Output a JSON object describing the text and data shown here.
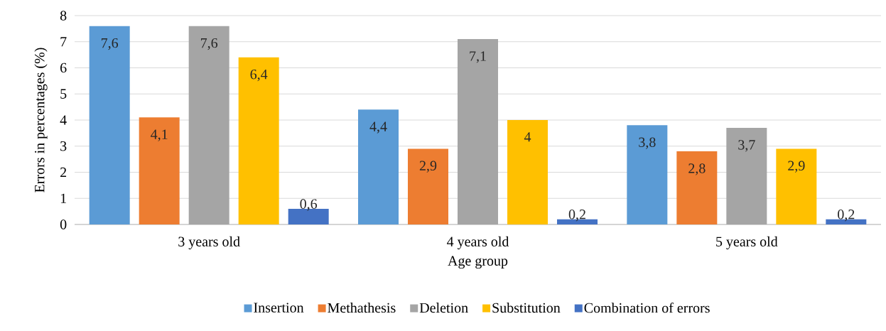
{
  "chart_data": {
    "type": "bar",
    "xlabel": "Age group",
    "ylabel": "Errors in percentages (%)",
    "categories": [
      "3 years old",
      "4 years old",
      "5 years old"
    ],
    "series": [
      {
        "name": "Insertion",
        "color": "#5b9bd5",
        "values": [
          7.6,
          4.4,
          3.8
        ],
        "value_labels": [
          "7,6",
          "4,4",
          "3,8"
        ]
      },
      {
        "name": "Methathesis",
        "color": "#ed7d31",
        "values": [
          4.1,
          2.9,
          2.8
        ],
        "value_labels": [
          "4,1",
          "2,9",
          "2,8"
        ]
      },
      {
        "name": "Deletion",
        "color": "#a5a5a5",
        "values": [
          7.6,
          7.1,
          3.7
        ],
        "value_labels": [
          "7,6",
          "7,1",
          "3,7"
        ]
      },
      {
        "name": "Substitution",
        "color": "#ffc000",
        "values": [
          6.4,
          4.0,
          2.9
        ],
        "value_labels": [
          "6,4",
          "4",
          "2,9"
        ]
      },
      {
        "name": "Combination of errors",
        "color": "#4472c4",
        "values": [
          0.6,
          0.2,
          0.2
        ],
        "value_labels": [
          "0,6",
          "0,2",
          "0,2"
        ]
      }
    ],
    "ylim": [
      0,
      8
    ],
    "yticks": [
      0,
      1,
      2,
      3,
      4,
      5,
      6,
      7,
      8
    ],
    "grid": "y",
    "legend": "bottom"
  }
}
